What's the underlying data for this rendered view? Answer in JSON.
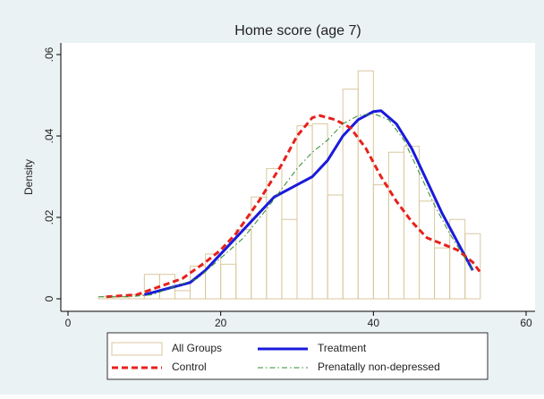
{
  "chart_data": {
    "type": "histogram",
    "title": "Home score (age 7)",
    "ylabel": "Density",
    "bins": [
      4,
      6,
      8,
      10,
      12,
      14,
      16,
      18,
      20,
      22,
      24,
      26,
      28,
      30,
      32,
      34,
      36,
      38,
      40,
      42,
      44,
      46,
      48,
      50,
      52,
      54
    ],
    "xlim": [
      0,
      60
    ],
    "xticks": [
      0,
      20,
      40,
      60
    ],
    "ylim": [
      0,
      0.06
    ],
    "yticks": [
      0,
      {
        "value": 0.02,
        "label": ".02"
      },
      {
        "value": 0.04,
        "label": ".04"
      },
      {
        "value": 0.06,
        "label": ".06"
      }
    ],
    "grid": false,
    "series": [
      {
        "name": "All Groups",
        "type": "histogram",
        "color": "#d8c89e",
        "values": [
          0.0005,
          0.0005,
          0.001,
          0.006,
          0.006,
          0.002,
          0.008,
          0.011,
          0.0085,
          0.017,
          0.025,
          0.032,
          0.0195,
          0.0425,
          0.043,
          0.0255,
          0.0515,
          0.056,
          0.028,
          0.036,
          0.0375,
          0.024,
          0.0125,
          0.0195,
          0.016
        ]
      },
      {
        "name": "Treatment",
        "type": "line",
        "color": "#1a1adb",
        "style": "solid",
        "x": [
          10,
          13,
          16,
          18,
          20,
          22,
          25,
          27,
          30,
          32,
          34,
          36,
          38,
          40,
          41,
          43,
          45,
          47,
          49,
          51,
          53
        ],
        "values": [
          0.001,
          0.0025,
          0.004,
          0.007,
          0.011,
          0.015,
          0.021,
          0.025,
          0.028,
          0.03,
          0.034,
          0.04,
          0.044,
          0.046,
          0.0462,
          0.043,
          0.037,
          0.029,
          0.021,
          0.014,
          0.007
        ]
      },
      {
        "name": "Control",
        "type": "line",
        "color": "#e8201c",
        "style": "dash",
        "x": [
          5,
          9,
          12,
          15,
          18,
          20,
          22,
          25,
          28,
          30,
          32,
          33,
          35,
          37,
          39,
          41,
          43,
          45,
          47,
          49,
          51,
          53,
          54
        ],
        "values": [
          0.0005,
          0.001,
          0.003,
          0.005,
          0.009,
          0.012,
          0.016,
          0.024,
          0.033,
          0.04,
          0.0445,
          0.045,
          0.044,
          0.042,
          0.037,
          0.03,
          0.024,
          0.019,
          0.015,
          0.0135,
          0.012,
          0.009,
          0.0065
        ]
      },
      {
        "name": "Prenatally non-depressed",
        "type": "line",
        "color": "#2e8b2e",
        "style": "dashdot",
        "x": [
          4,
          8,
          11,
          14,
          17,
          20,
          23,
          26,
          28,
          30,
          32,
          34,
          36,
          38,
          40,
          42,
          44,
          46,
          48,
          50,
          52,
          53
        ],
        "values": [
          0.0005,
          0.0005,
          0.001,
          0.003,
          0.005,
          0.01,
          0.015,
          0.022,
          0.027,
          0.032,
          0.036,
          0.039,
          0.043,
          0.045,
          0.0455,
          0.044,
          0.039,
          0.031,
          0.023,
          0.016,
          0.01,
          0.007
        ]
      }
    ]
  }
}
